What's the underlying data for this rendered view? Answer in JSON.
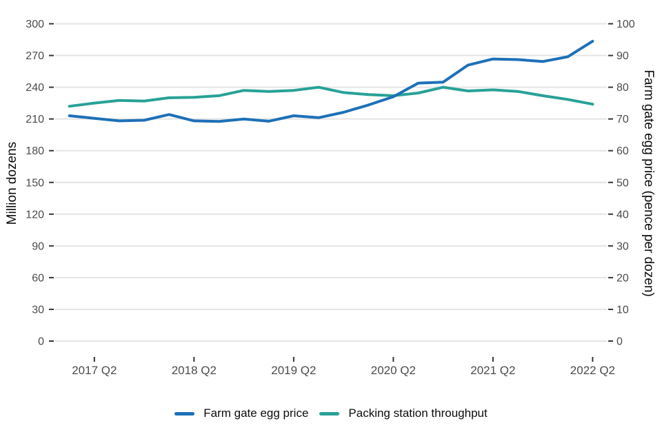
{
  "chart_data": {
    "type": "line",
    "title": "",
    "x_categories": [
      "2017 Q1",
      "2017 Q2",
      "2017 Q3",
      "2017 Q4",
      "2018 Q1",
      "2018 Q2",
      "2018 Q3",
      "2018 Q4",
      "2019 Q1",
      "2019 Q2",
      "2019 Q3",
      "2019 Q4",
      "2020 Q1",
      "2020 Q2",
      "2020 Q3",
      "2020 Q4",
      "2021 Q1",
      "2021 Q2",
      "2021 Q3",
      "2021 Q4",
      "2022 Q1",
      "2022 Q2"
    ],
    "x_tick_labels": [
      "2017 Q2",
      "2018 Q2",
      "2019 Q2",
      "2020 Q2",
      "2021 Q2",
      "2022 Q2"
    ],
    "left_axis": {
      "label": "Million dozens",
      "min": 0,
      "max": 300,
      "step": 30,
      "tick_labels": [
        "0",
        "30",
        "60",
        "90",
        "120",
        "150",
        "180",
        "210",
        "240",
        "270",
        "300"
      ]
    },
    "right_axis": {
      "label": "Farm gate egg price (pence per dozen)",
      "min": 0,
      "max": 100,
      "step": 10,
      "tick_labels": [
        "0",
        "10",
        "20",
        "30",
        "40",
        "50",
        "60",
        "70",
        "80",
        "90",
        "100"
      ]
    },
    "grid": "horizontal-only",
    "legend_position": "bottom-center",
    "series": [
      {
        "name": "Farm gate egg price",
        "axis": "right",
        "unit": "pence per dozen",
        "color": "#1d70b8",
        "values": [
          71.0,
          70.2,
          69.4,
          69.6,
          71.4,
          69.4,
          69.2,
          70.0,
          69.3,
          71.0,
          70.4,
          72.1,
          74.4,
          77.0,
          81.3,
          81.6,
          87.0,
          88.9,
          88.7,
          88.1,
          89.6,
          94.5
        ]
      },
      {
        "name": "Packing station throughput",
        "axis": "left",
        "unit": "million dozens",
        "color": "#28a197",
        "values": [
          222,
          225,
          227.5,
          227,
          230,
          230.5,
          232,
          237,
          236,
          237,
          240,
          235,
          233,
          232,
          234.5,
          240,
          236.5,
          237.5,
          236,
          232,
          228.5,
          224
        ]
      }
    ],
    "style": {
      "gridline_color": "#e4e4e4",
      "tick_mark_color": "#333333",
      "tick_label_color": "#4b4b4b",
      "axis_title_color": "#0b0c0c",
      "background_color": "#ffffff",
      "line_width": 4
    }
  }
}
